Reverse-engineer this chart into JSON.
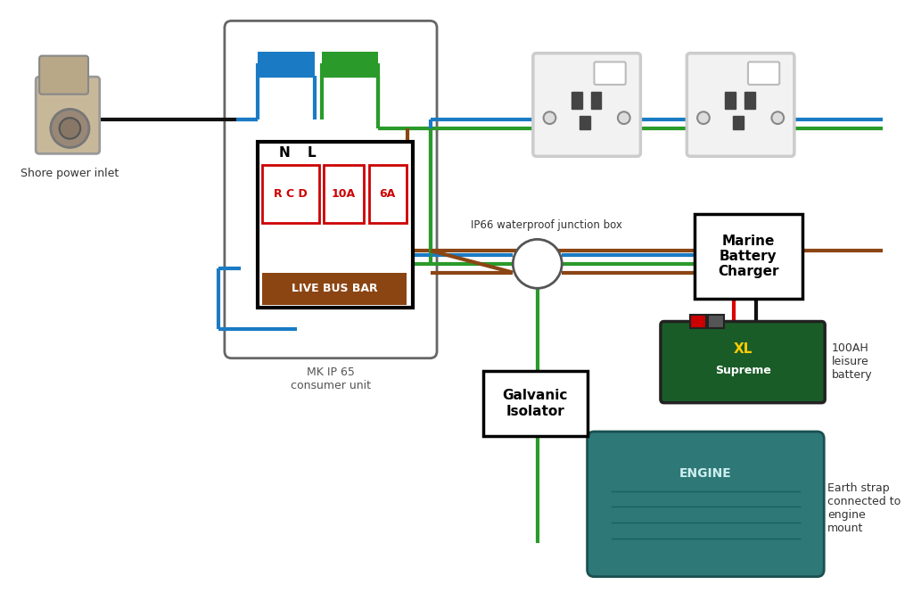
{
  "bg_color": "#ffffff",
  "wire_colors": {
    "blue": "#1a7bc4",
    "green": "#2a9a2a",
    "brown": "#8B4513",
    "black": "#111111",
    "red": "#dd0000",
    "gray": "#888888"
  },
  "lw_main": 3.5,
  "lw_thin": 2.5,
  "labels": {
    "shore_power": "Shore power inlet",
    "consumer_unit": "MK IP 65\nconsumer unit",
    "junction_box": "IP66 waterproof junction box",
    "marine_charger": "Marine\nBattery\nCharger",
    "galvanic_isolator": "Galvanic\nIsolator",
    "battery": "100AH\nleisure\nbattery",
    "earth_strap": "Earth strap\nconnected to\nengine\nmount",
    "N": "N",
    "L": "L",
    "RCD": "R C D",
    "B10A": "10A",
    "B6A": "6A",
    "busbar": "LIVE BUS BAR"
  }
}
